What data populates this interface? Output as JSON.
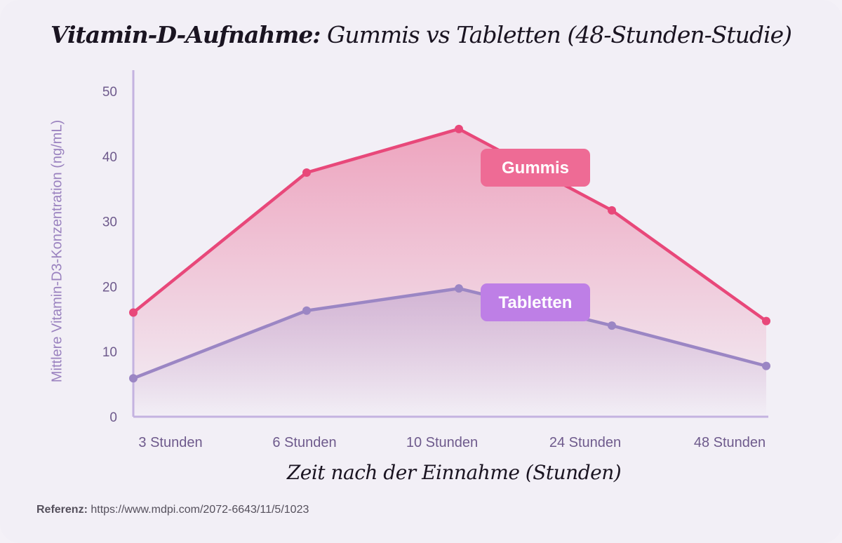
{
  "title": {
    "bold": "Vitamin-D-Aufnahme:",
    "rest": " Gummis vs Tabletten (48-Stunden-Studie)"
  },
  "reference": {
    "label": "Referenz:",
    "url": "https://www.mdpi.com/2072-6643/11/5/1023"
  },
  "colors": {
    "gummis": "#e8487a",
    "tabletten": "#9b86c4",
    "axis": "#c4b3e0",
    "tick": "#6e5a8c",
    "gummis_badge": "#ee6b95",
    "tabletten_badge": "#be7fe6"
  },
  "chart_data": {
    "type": "area",
    "title": "Vitamin-D-Aufnahme: Gummis vs Tabletten (48-Stunden-Studie)",
    "xlabel": "Zeit nach der Einnahme (Stunden)",
    "ylabel": "Mittlere Vitamin-D3-Konzentration (ng/mL)",
    "categories": [
      "3 Stunden",
      "6 Stunden",
      "10 Stunden",
      "24 Stunden",
      "48 Stunden"
    ],
    "ylim": [
      0,
      50
    ],
    "yticks": [
      0,
      10,
      20,
      30,
      40,
      50
    ],
    "grid": false,
    "series": [
      {
        "name": "Gummis",
        "values": [
          16.0,
          37.5,
          44.2,
          31.7,
          14.7
        ]
      },
      {
        "name": "Tabletten",
        "values": [
          5.9,
          16.3,
          19.7,
          14.0,
          7.8
        ]
      }
    ]
  }
}
